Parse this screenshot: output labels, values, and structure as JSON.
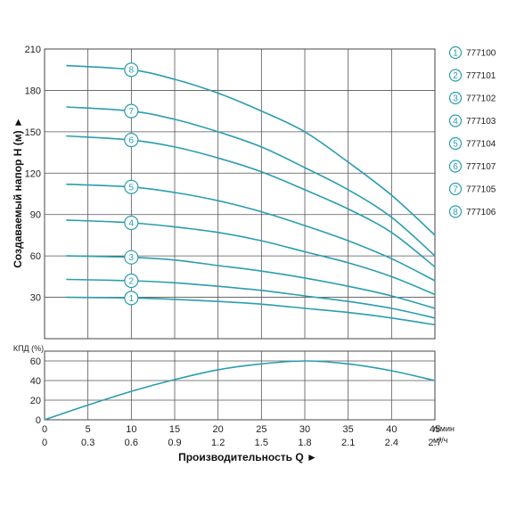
{
  "chart_data": [
    {
      "type": "line",
      "ylabel": "Создаваемый напор H (м) ►",
      "ylim": [
        0,
        210
      ],
      "yticks": [
        30,
        60,
        90,
        120,
        150,
        180,
        210
      ],
      "xlim": [
        0,
        45
      ],
      "grid": true,
      "legend_position": "right",
      "series": [
        {
          "name": "777100",
          "marker": "1",
          "x": [
            2.5,
            10,
            15,
            20,
            25,
            30,
            35,
            40,
            45
          ],
          "values": [
            30,
            29.5,
            28.5,
            27,
            25,
            22,
            19,
            15,
            10
          ]
        },
        {
          "name": "777101",
          "marker": "2",
          "x": [
            2.5,
            10,
            15,
            20,
            25,
            30,
            35,
            40,
            45
          ],
          "values": [
            43,
            42,
            40.5,
            38,
            35,
            31,
            27,
            22,
            15
          ]
        },
        {
          "name": "777102",
          "marker": "3",
          "x": [
            2.5,
            10,
            15,
            20,
            25,
            30,
            35,
            40,
            45
          ],
          "values": [
            60,
            59,
            57,
            53,
            49,
            44,
            38,
            31,
            22
          ]
        },
        {
          "name": "777103",
          "marker": "4",
          "x": [
            2.5,
            10,
            15,
            20,
            25,
            30,
            35,
            40,
            45
          ],
          "values": [
            86,
            84,
            81,
            77,
            71,
            63,
            55,
            45,
            32
          ]
        },
        {
          "name": "777104",
          "marker": "5",
          "x": [
            2.5,
            10,
            15,
            20,
            25,
            30,
            35,
            40,
            45
          ],
          "values": [
            112,
            110,
            106,
            100,
            92,
            82,
            71,
            58,
            42
          ]
        },
        {
          "name": "777107",
          "marker": "6",
          "x": [
            2.5,
            10,
            15,
            20,
            25,
            30,
            35,
            40,
            45
          ],
          "values": [
            147,
            144,
            139,
            131,
            121,
            108,
            94,
            77,
            52
          ]
        },
        {
          "name": "777105",
          "marker": "7",
          "x": [
            2.5,
            10,
            15,
            20,
            25,
            30,
            35,
            40,
            45
          ],
          "values": [
            168,
            165,
            159,
            150,
            139,
            124,
            108,
            88,
            60
          ]
        },
        {
          "name": "777106",
          "marker": "8",
          "x": [
            2.5,
            10,
            15,
            20,
            25,
            30,
            35,
            40,
            45
          ],
          "values": [
            198,
            195,
            188,
            178,
            165,
            150,
            128,
            104,
            75
          ]
        }
      ]
    },
    {
      "type": "line",
      "ylabel": "КПД (%)",
      "ylim": [
        0,
        70
      ],
      "yticks": [
        0,
        20,
        40,
        60
      ],
      "xlabel": "Производительность Q ►",
      "xlim": [
        0,
        45
      ],
      "xticks": [
        0,
        5,
        10,
        15,
        20,
        25,
        30,
        35,
        40,
        45
      ],
      "xunit": "л/мин",
      "xticks_secondary": [
        "0",
        "0.3",
        "0.6",
        "0.9",
        "1.2",
        "1.5",
        "1.8",
        "2.1",
        "2.4",
        "2.7"
      ],
      "xunit_secondary": "м³/ч",
      "grid": true,
      "series": [
        {
          "x": [
            0,
            5,
            10,
            15,
            20,
            25,
            30,
            35,
            40,
            45
          ],
          "values": [
            0,
            15,
            29,
            41,
            51,
            57,
            60,
            57,
            50,
            40
          ]
        }
      ]
    }
  ]
}
